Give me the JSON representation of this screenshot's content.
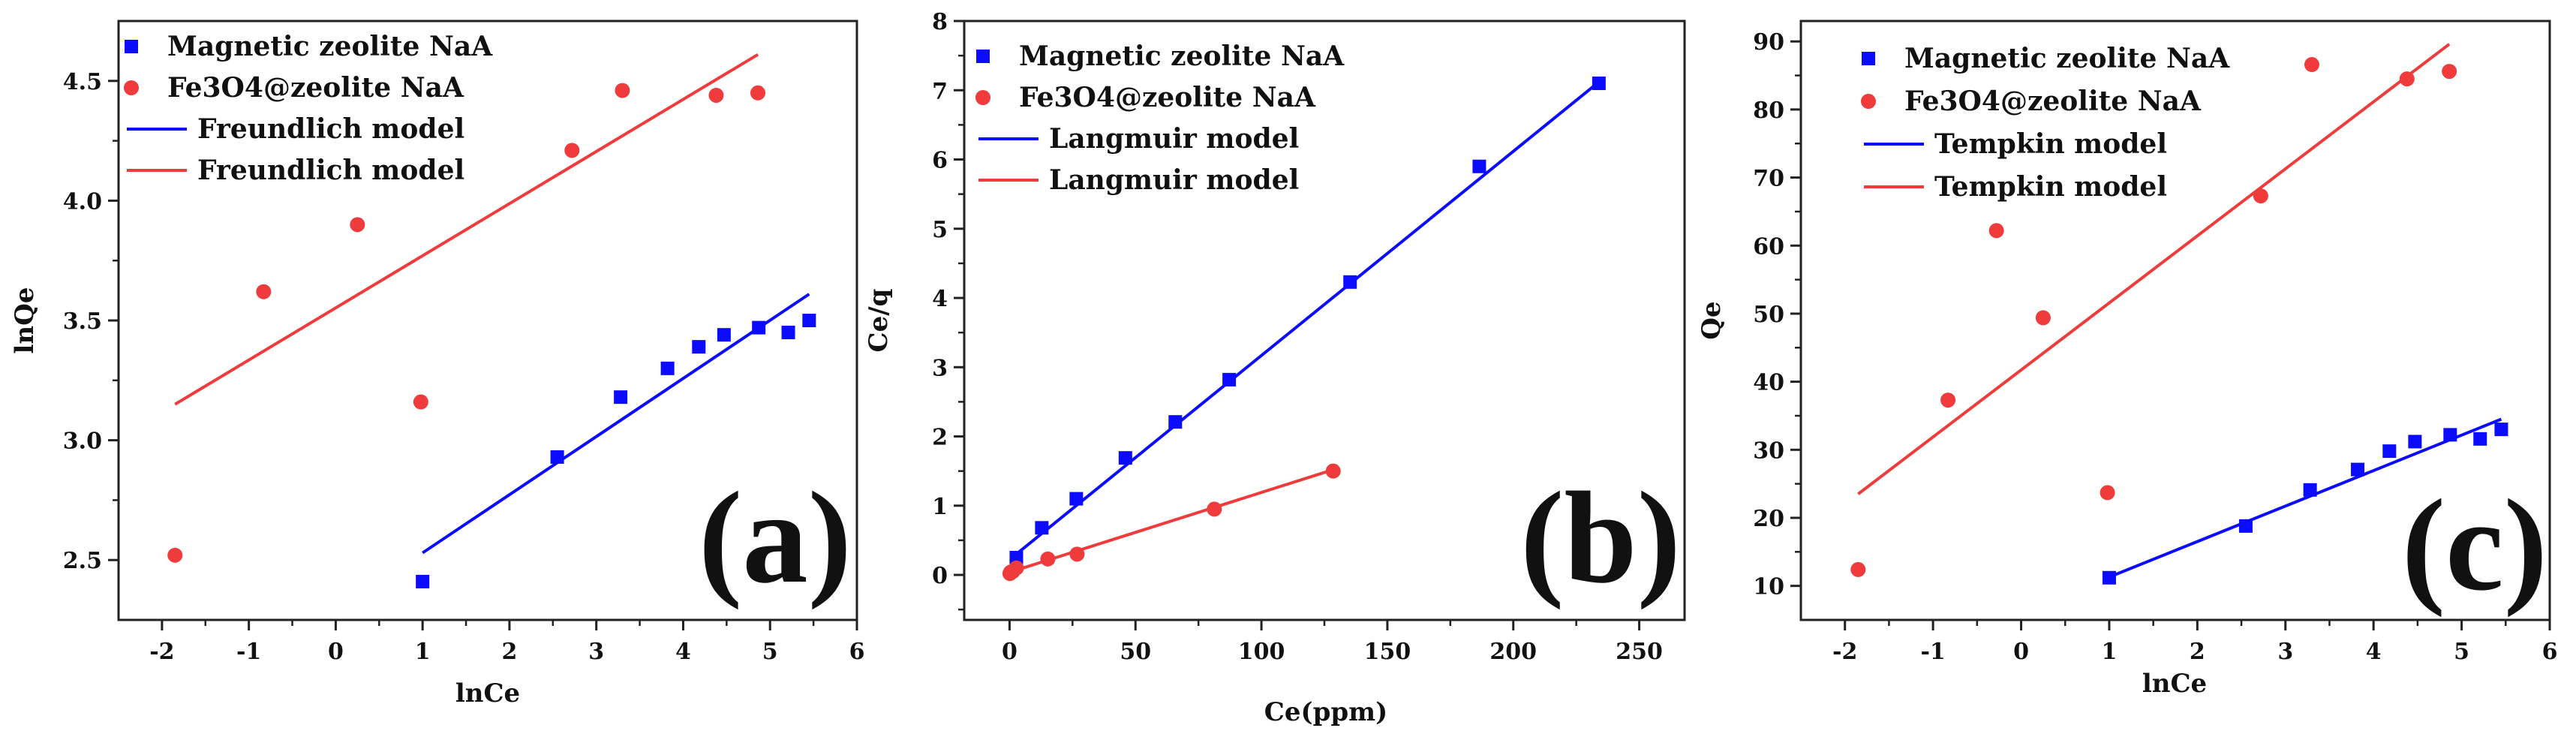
{
  "chart_data": [
    {
      "type": "scatter",
      "panel": "(a)",
      "xlabel": "lnCe",
      "ylabel": "lnQe",
      "xlim": [
        -2.5,
        6
      ],
      "ylim": [
        2.25,
        4.75
      ],
      "xticks": [
        -2,
        -1,
        0,
        1,
        2,
        3,
        4,
        5,
        6
      ],
      "xtick_labels": [
        "-2",
        "-1",
        "0",
        "1",
        "2",
        "3",
        "4",
        "5",
        "6"
      ],
      "yticks": [
        2.5,
        3.0,
        3.5,
        4.0,
        4.5
      ],
      "ytick_labels": [
        "2.5",
        "3.0",
        "3.5",
        "4.0",
        "4.5"
      ],
      "legend_position": "top-left",
      "legend": [
        {
          "label": "Magnetic  zeolite  NaA",
          "kind": "square",
          "color": "#0b0bff"
        },
        {
          "label": "Fe3O4@zeolite  NaA",
          "kind": "circle",
          "color": "#ef3b3b"
        },
        {
          "label": "Freundlich model",
          "kind": "line",
          "color": "#0b0bff"
        },
        {
          "label": "Freundlich model",
          "kind": "line",
          "color": "#ef3b3b"
        }
      ],
      "series": [
        {
          "name": "Magnetic zeolite NaA",
          "marker": "square",
          "color": "#0b0bff",
          "points": [
            [
              1.0,
              2.41
            ],
            [
              2.55,
              2.93
            ],
            [
              3.28,
              3.18
            ],
            [
              3.82,
              3.3
            ],
            [
              4.18,
              3.39
            ],
            [
              4.47,
              3.44
            ],
            [
              4.87,
              3.47
            ],
            [
              5.21,
              3.45
            ],
            [
              5.45,
              3.5
            ]
          ]
        },
        {
          "name": "Fe3O4@zeolite NaA",
          "marker": "circle",
          "color": "#ef3b3b",
          "points": [
            [
              -1.85,
              2.52
            ],
            [
              -0.83,
              3.62
            ],
            [
              0.25,
              3.9
            ],
            [
              0.98,
              3.16
            ],
            [
              2.72,
              4.21
            ],
            [
              3.3,
              4.46
            ],
            [
              4.38,
              4.44
            ],
            [
              4.86,
              4.45
            ]
          ]
        }
      ],
      "fit_lines": [
        {
          "name": "Freundlich model",
          "color": "#0b0bff",
          "points": [
            [
              1.0,
              2.53
            ],
            [
              5.45,
              3.61
            ]
          ]
        },
        {
          "name": "Freundlich model",
          "color": "#ef3b3b",
          "points": [
            [
              -1.85,
              3.15
            ],
            [
              4.86,
              4.61
            ]
          ]
        }
      ]
    },
    {
      "type": "scatter",
      "panel": "(b)",
      "xlabel": "Ce(ppm)",
      "ylabel": "Ce/q",
      "xlim": [
        -18,
        268
      ],
      "ylim": [
        -0.65,
        8
      ],
      "xticks": [
        0,
        50,
        100,
        150,
        200,
        250
      ],
      "xtick_labels": [
        "0",
        "50",
        "100",
        "150",
        "200",
        "250"
      ],
      "yticks": [
        0,
        1,
        2,
        3,
        4,
        5,
        6,
        7,
        8
      ],
      "ytick_labels": [
        "0",
        "1",
        "2",
        "3",
        "4",
        "5",
        "6",
        "7",
        "8"
      ],
      "legend_position": "top-left",
      "legend": [
        {
          "label": "Magnetic zeolite  NaA",
          "kind": "square",
          "color": "#0b0bff"
        },
        {
          "label": "Fe3O4@zeolite NaA",
          "kind": "circle",
          "color": "#ef3b3b"
        },
        {
          "label": "Langmuir model",
          "kind": "line",
          "color": "#0b0bff"
        },
        {
          "label": "Langmuir model",
          "kind": "line",
          "color": "#ef3b3b"
        }
      ],
      "series": [
        {
          "name": "Magnetic zeolite NaA",
          "marker": "square",
          "color": "#0b0bff",
          "points": [
            [
              2.7,
              0.25
            ],
            [
              12.8,
              0.68
            ],
            [
              26.5,
              1.1
            ],
            [
              46,
              1.69
            ],
            [
              65.8,
              2.21
            ],
            [
              87.2,
              2.82
            ],
            [
              135.2,
              4.23
            ],
            [
              186.5,
              5.9
            ],
            [
              234,
              7.1
            ]
          ]
        },
        {
          "name": "Fe3O4@zeolite NaA",
          "marker": "circle",
          "color": "#ef3b3b",
          "points": [
            [
              0.16,
              0.02
            ],
            [
              0.44,
              0.04
            ],
            [
              1.28,
              0.05
            ],
            [
              2.7,
              0.1
            ],
            [
              15.2,
              0.23
            ],
            [
              26.8,
              0.3
            ],
            [
              81.3,
              0.95
            ],
            [
              128.5,
              1.5
            ]
          ]
        }
      ],
      "fit_lines": [
        {
          "name": "Langmuir model",
          "color": "#0b0bff",
          "points": [
            [
              2.7,
              0.3
            ],
            [
              234,
              7.12
            ]
          ]
        },
        {
          "name": "Langmuir model",
          "color": "#ef3b3b",
          "points": [
            [
              0.16,
              0.04
            ],
            [
              128.5,
              1.52
            ]
          ]
        }
      ]
    },
    {
      "type": "scatter",
      "panel": "(c)",
      "xlabel": "lnCe",
      "ylabel": "Qe",
      "xlim": [
        -2.5,
        6
      ],
      "ylim": [
        5,
        93
      ],
      "xticks": [
        -2,
        -1,
        0,
        1,
        2,
        3,
        4,
        5,
        6
      ],
      "xtick_labels": [
        "-2",
        "-1",
        "0",
        "1",
        "2",
        "3",
        "4",
        "5",
        "6"
      ],
      "yticks": [
        10,
        20,
        30,
        40,
        50,
        60,
        70,
        80,
        90
      ],
      "ytick_labels": [
        "10",
        "20",
        "30",
        "40",
        "50",
        "60",
        "70",
        "80",
        "90"
      ],
      "legend_position": "top-left",
      "legend": [
        {
          "label": "Magnetic  zeolite NaA",
          "kind": "square",
          "color": "#0b0bff"
        },
        {
          "label": "Fe3O4@zeolite NaA",
          "kind": "circle",
          "color": "#ef3b3b"
        },
        {
          "label": "Tempkin model",
          "kind": "line",
          "color": "#0b0bff"
        },
        {
          "label": "Tempkin model",
          "kind": "line",
          "color": "#ef3b3b"
        }
      ],
      "series": [
        {
          "name": "Magnetic zeolite NaA",
          "marker": "square",
          "color": "#0b0bff",
          "points": [
            [
              1.0,
              11.2
            ],
            [
              2.55,
              18.8
            ],
            [
              3.28,
              24.1
            ],
            [
              3.82,
              27.1
            ],
            [
              4.18,
              29.8
            ],
            [
              4.47,
              31.2
            ],
            [
              4.87,
              32.2
            ],
            [
              5.21,
              31.6
            ],
            [
              5.45,
              33.0
            ]
          ]
        },
        {
          "name": "Fe3O4@zeolite NaA",
          "marker": "circle",
          "color": "#ef3b3b",
          "points": [
            [
              -1.85,
              12.4
            ],
            [
              -0.83,
              37.3
            ],
            [
              -0.28,
              62.2
            ],
            [
              0.25,
              49.4
            ],
            [
              0.98,
              23.7
            ],
            [
              2.72,
              67.3
            ],
            [
              3.3,
              86.6
            ],
            [
              4.38,
              84.5
            ],
            [
              4.86,
              85.6
            ]
          ]
        }
      ],
      "fit_lines": [
        {
          "name": "Tempkin model",
          "color": "#0b0bff",
          "points": [
            [
              1.0,
              11.3
            ],
            [
              5.45,
              34.5
            ]
          ]
        },
        {
          "name": "Tempkin model",
          "color": "#ef3b3b",
          "points": [
            [
              -1.85,
              23.5
            ],
            [
              4.86,
              89.6
            ]
          ]
        }
      ]
    }
  ]
}
